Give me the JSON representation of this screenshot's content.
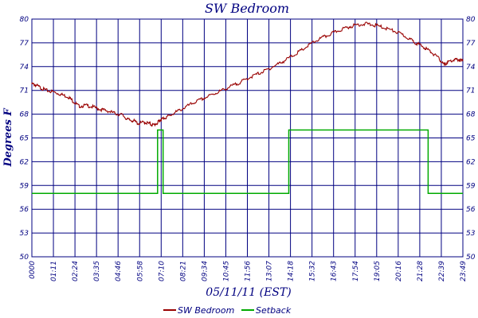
{
  "chart_data": {
    "type": "line",
    "title": "SW Bedroom",
    "xlabel": "05/11/11 (EST)",
    "ylabel": "Degrees F",
    "x_tick_labels": [
      "0000",
      "01:11",
      "02:24",
      "03:35",
      "04:46",
      "05:58",
      "07:10",
      "08:21",
      "09:34",
      "10:45",
      "11:56",
      "13:07",
      "14:18",
      "15:32",
      "16:43",
      "17:54",
      "19:05",
      "20:16",
      "21:28",
      "22:39",
      "23:49"
    ],
    "y_ticks": [
      50,
      53,
      56,
      59,
      62,
      65,
      68,
      71,
      74,
      77,
      80
    ],
    "y_tick_labels": [
      "50",
      "53",
      "56",
      "59",
      "62",
      "65",
      "68",
      "71",
      "74",
      "77",
      "80"
    ],
    "ylim": [
      50,
      80
    ],
    "x_unit": "hours",
    "xlim": [
      0,
      23.82
    ],
    "grid": true,
    "legend_position": "bottom",
    "series": [
      {
        "name": "SW Bedroom",
        "color": "#990000",
        "x": [
          0,
          0.2,
          0.5,
          0.8,
          1.2,
          1.6,
          2.0,
          2.3,
          2.6,
          3.0,
          3.4,
          3.8,
          4.2,
          4.6,
          5.0,
          5.3,
          5.6,
          5.9,
          6.2,
          6.5,
          6.7,
          6.95,
          7.1,
          7.3,
          7.6,
          8.0,
          8.5,
          9.0,
          9.5,
          10.0,
          10.5,
          11.0,
          11.5,
          12.0,
          12.5,
          13.0,
          13.5,
          14.0,
          14.5,
          15.0,
          15.5,
          16.0,
          16.5,
          17.0,
          17.5,
          18.0,
          18.5,
          19.0,
          19.5,
          20.0,
          20.5,
          21.0,
          21.3,
          21.7,
          22.1,
          22.5,
          22.8,
          23.0,
          23.3,
          23.6,
          23.82
        ],
        "y": [
          71.8,
          71.7,
          71.3,
          71.0,
          70.8,
          70.5,
          70.2,
          69.6,
          69.0,
          69.1,
          68.9,
          68.6,
          68.4,
          68.1,
          67.9,
          67.3,
          67.2,
          66.8,
          67.0,
          66.8,
          66.6,
          66.9,
          67.3,
          67.5,
          67.8,
          68.3,
          68.9,
          69.5,
          70.0,
          70.5,
          71.0,
          71.5,
          72.0,
          72.6,
          73.1,
          73.6,
          74.2,
          74.8,
          75.5,
          76.2,
          77.0,
          77.6,
          78.1,
          78.6,
          79.0,
          79.3,
          79.4,
          79.2,
          78.9,
          78.5,
          78.0,
          77.3,
          76.9,
          76.4,
          75.8,
          75.0,
          74.2,
          74.6,
          74.8,
          74.9,
          74.7
        ]
      },
      {
        "name": "Setback",
        "color": "#00aa00",
        "x": [
          0,
          6.95,
          6.95,
          7.25,
          7.25,
          14.2,
          14.2,
          21.9,
          21.9,
          23.82
        ],
        "y": [
          58,
          58,
          66,
          66,
          58,
          58,
          66,
          66,
          58,
          58
        ]
      }
    ]
  }
}
